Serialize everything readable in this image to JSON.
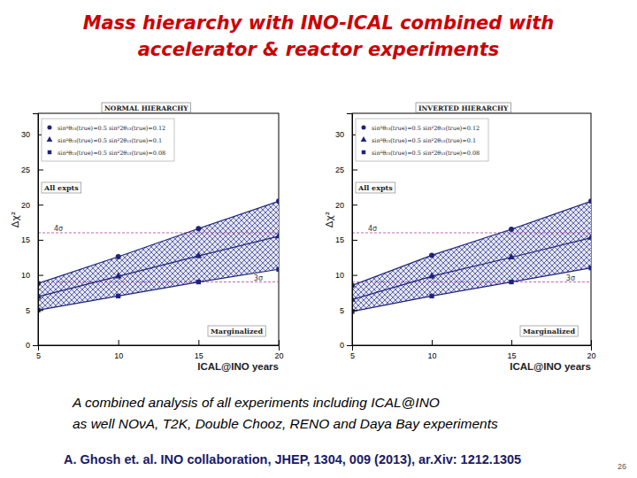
{
  "slide": {
    "title": [
      "Mass hierarchy with INO-ICAL combined with",
      "accelerator & reactor experiments"
    ],
    "caption": [
      "A combined analysis of all experiments including ICAL@INO",
      "as well NOνA, T2K, Double Chooz, RENO and Daya Bay experiments"
    ],
    "citation": "A. Ghosh et. al. INO collaboration, JHEP, 1304, 009 (2013), ar.Xiv: 1212.1305",
    "page": "26"
  },
  "chart_data": [
    {
      "type": "line",
      "title": "NORMAL HIERARCHY",
      "x_label": "ICAL@INO years",
      "y_label": "Δχ²",
      "x": [
        5,
        10,
        15,
        20
      ],
      "xlim": [
        5,
        20
      ],
      "xticks": [
        5,
        10,
        15,
        20
      ],
      "ylim": [
        0,
        33
      ],
      "yticks": [
        0,
        5,
        10,
        15,
        20,
        25,
        30
      ],
      "legend": "upper left",
      "series": [
        {
          "name": "sin²θ₂₃(true)=0.5   sin²2θ₁₃(true)=0.12",
          "color": "#1f237a",
          "marker": "circle",
          "values": [
            8.8,
            12.6,
            16.6,
            20.5
          ]
        },
        {
          "name": "sin²θ₂₃(true)=0.5   sin²2θ₁₃(true)=0.1",
          "color": "#1f237a",
          "marker": "triangle",
          "values": [
            6.9,
            9.8,
            12.7,
            15.5
          ]
        },
        {
          "name": "sin²θ₂₃(true)=0.5   sin²2θ₁₃(true)=0.08",
          "color": "#1f237a",
          "marker": "square",
          "values": [
            5.0,
            7.0,
            9.0,
            10.8
          ]
        }
      ],
      "reference_lines": [
        {
          "value": 16,
          "label": "4σ"
        },
        {
          "value": 9,
          "label": "3σ"
        }
      ],
      "annotations": [
        "All expts",
        "Marginalized"
      ]
    },
    {
      "type": "line",
      "title": "INVERTED HIERARCHY",
      "x_label": "ICAL@INO years",
      "y_label": "Δχ²",
      "x": [
        5,
        10,
        15,
        20
      ],
      "xlim": [
        5,
        20
      ],
      "xticks": [
        5,
        10,
        15,
        20
      ],
      "ylim": [
        0,
        33
      ],
      "yticks": [
        0,
        5,
        10,
        15,
        20,
        25,
        30
      ],
      "legend": "upper left",
      "series": [
        {
          "name": "sin²θ₂₃(true)=0.5   sin²2θ₁₃(true)=0.12",
          "color": "#1f237a",
          "marker": "circle",
          "values": [
            8.5,
            12.8,
            16.5,
            20.5
          ]
        },
        {
          "name": "sin²θ₂₃(true)=0.5   sin²2θ₁₃(true)=0.1",
          "color": "#1f237a",
          "marker": "triangle",
          "values": [
            6.5,
            9.8,
            12.5,
            15.3
          ]
        },
        {
          "name": "sin²θ₂₃(true)=0.5   sin²2θ₁₃(true)=0.08",
          "color": "#1f237a",
          "marker": "square",
          "values": [
            4.8,
            7.0,
            9.0,
            11.0
          ]
        }
      ],
      "reference_lines": [
        {
          "value": 16,
          "label": "4σ"
        },
        {
          "value": 9,
          "label": "3σ"
        }
      ],
      "annotations": [
        "All expts",
        "Marginalized"
      ]
    }
  ]
}
